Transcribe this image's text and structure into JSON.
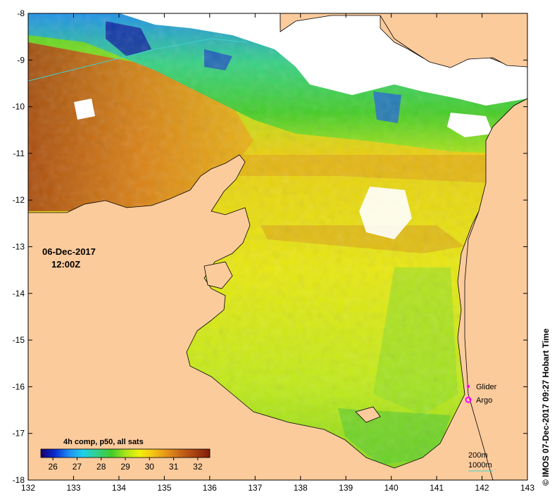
{
  "map": {
    "date_line": "06-Dec-2017",
    "time_line": "12:00Z",
    "colorbar_title": "4h comp, p50, all sats",
    "colorbar_ticks": [
      "26",
      "27",
      "28",
      "29",
      "30",
      "31",
      "32"
    ],
    "colorbar_range": [
      25.5,
      32.5
    ],
    "colorbar_colors": [
      "#18006b",
      "#0a2bd0",
      "#1f8ef2",
      "#20d0e8",
      "#33d08a",
      "#3fcc2a",
      "#a8e41a",
      "#f2f20a",
      "#f4c212",
      "#e4901a",
      "#c46218",
      "#a53e10",
      "#7e1a0a"
    ],
    "x_ticks": [
      "132",
      "133",
      "134",
      "135",
      "136",
      "137",
      "138",
      "139",
      "140",
      "141",
      "142",
      "143"
    ],
    "y_ticks": [
      "-8",
      "-9",
      "-10",
      "-11",
      "-12",
      "-13",
      "-14",
      "-15",
      "-16",
      "-17",
      "-18"
    ],
    "lon_range": [
      132,
      143
    ],
    "lat_range": [
      -18,
      -8
    ],
    "legend": {
      "glider_label": "Glider",
      "argo_label": "Argo",
      "glider_color": "#ff00ff",
      "argo_color": "#ff00ff"
    },
    "contours": {
      "c200_label": "200m",
      "c1000_label": "1000m"
    },
    "credit": "© IMOS 07-Dec-2017 09:27 Hobart Time",
    "colors": {
      "land": "#fccb9c",
      "coast": "#000000",
      "cloud": "#ffffff"
    }
  }
}
